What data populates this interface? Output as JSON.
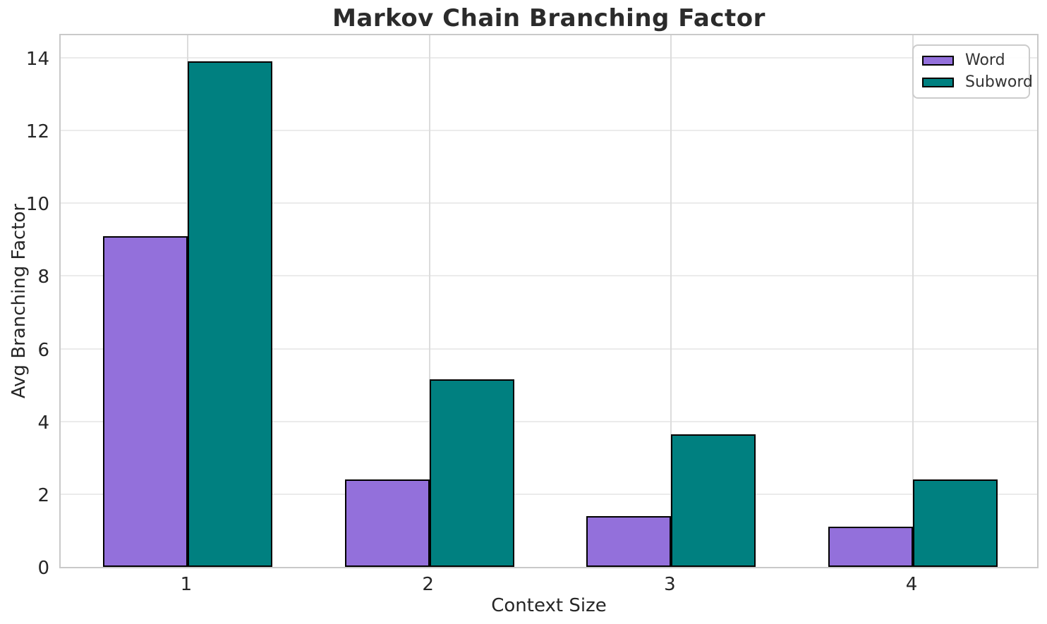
{
  "chart_data": {
    "type": "bar",
    "title": "Markov Chain Branching Factor",
    "xlabel": "Context Size",
    "ylabel": "Avg Branching Factor",
    "categories": [
      "1",
      "2",
      "3",
      "4"
    ],
    "series": [
      {
        "name": "Word",
        "color": "#9370DB",
        "values": [
          9.1,
          2.4,
          1.4,
          1.1
        ]
      },
      {
        "name": "Subword",
        "color": "#008080",
        "values": [
          13.9,
          5.15,
          3.65,
          2.4
        ]
      }
    ],
    "yticks": [
      0,
      2,
      4,
      6,
      8,
      10,
      12,
      14
    ],
    "ylim": [
      0,
      14.7
    ],
    "grid": true,
    "legend_position": "upper right",
    "bar_edge_color": "#000000",
    "background_color": "#ffffff",
    "grid_color": "#e5e5e5",
    "spine_color": "#c9c9c9"
  }
}
